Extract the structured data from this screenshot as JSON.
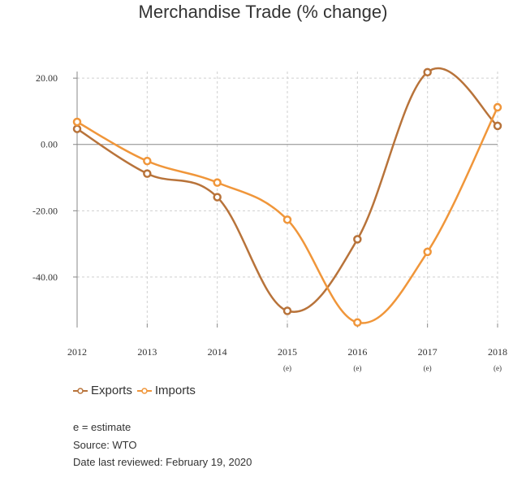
{
  "chart_data": {
    "type": "line",
    "title": "Merchandise Trade (% change)",
    "categories": [
      "2012",
      "2013",
      "2014",
      "2015",
      "2016",
      "2017",
      "2018"
    ],
    "category_notes": [
      "",
      "",
      "",
      "(e)",
      "(e)",
      "(e)",
      "(e)"
    ],
    "ylim": [
      -54,
      22
    ],
    "yticks": [
      20,
      0,
      -20,
      -40
    ],
    "ytick_labels": [
      "20.00",
      "0.00",
      "-20.00",
      "-40.00"
    ],
    "grid": true,
    "legend_position": "bottom-left",
    "series": [
      {
        "name": "Exports",
        "color": "#b8733a",
        "values": [
          4.7,
          -8.8,
          -15.9,
          -50.2,
          -28.6,
          21.8,
          5.6
        ]
      },
      {
        "name": "Imports",
        "color": "#f0963a",
        "values": [
          6.8,
          -5.0,
          -11.5,
          -22.7,
          -53.7,
          -32.4,
          11.2
        ]
      }
    ]
  },
  "footnotes": {
    "estimate": "e = estimate",
    "source": "Source: WTO",
    "reviewed": "Date last reviewed: February 19, 2020"
  }
}
